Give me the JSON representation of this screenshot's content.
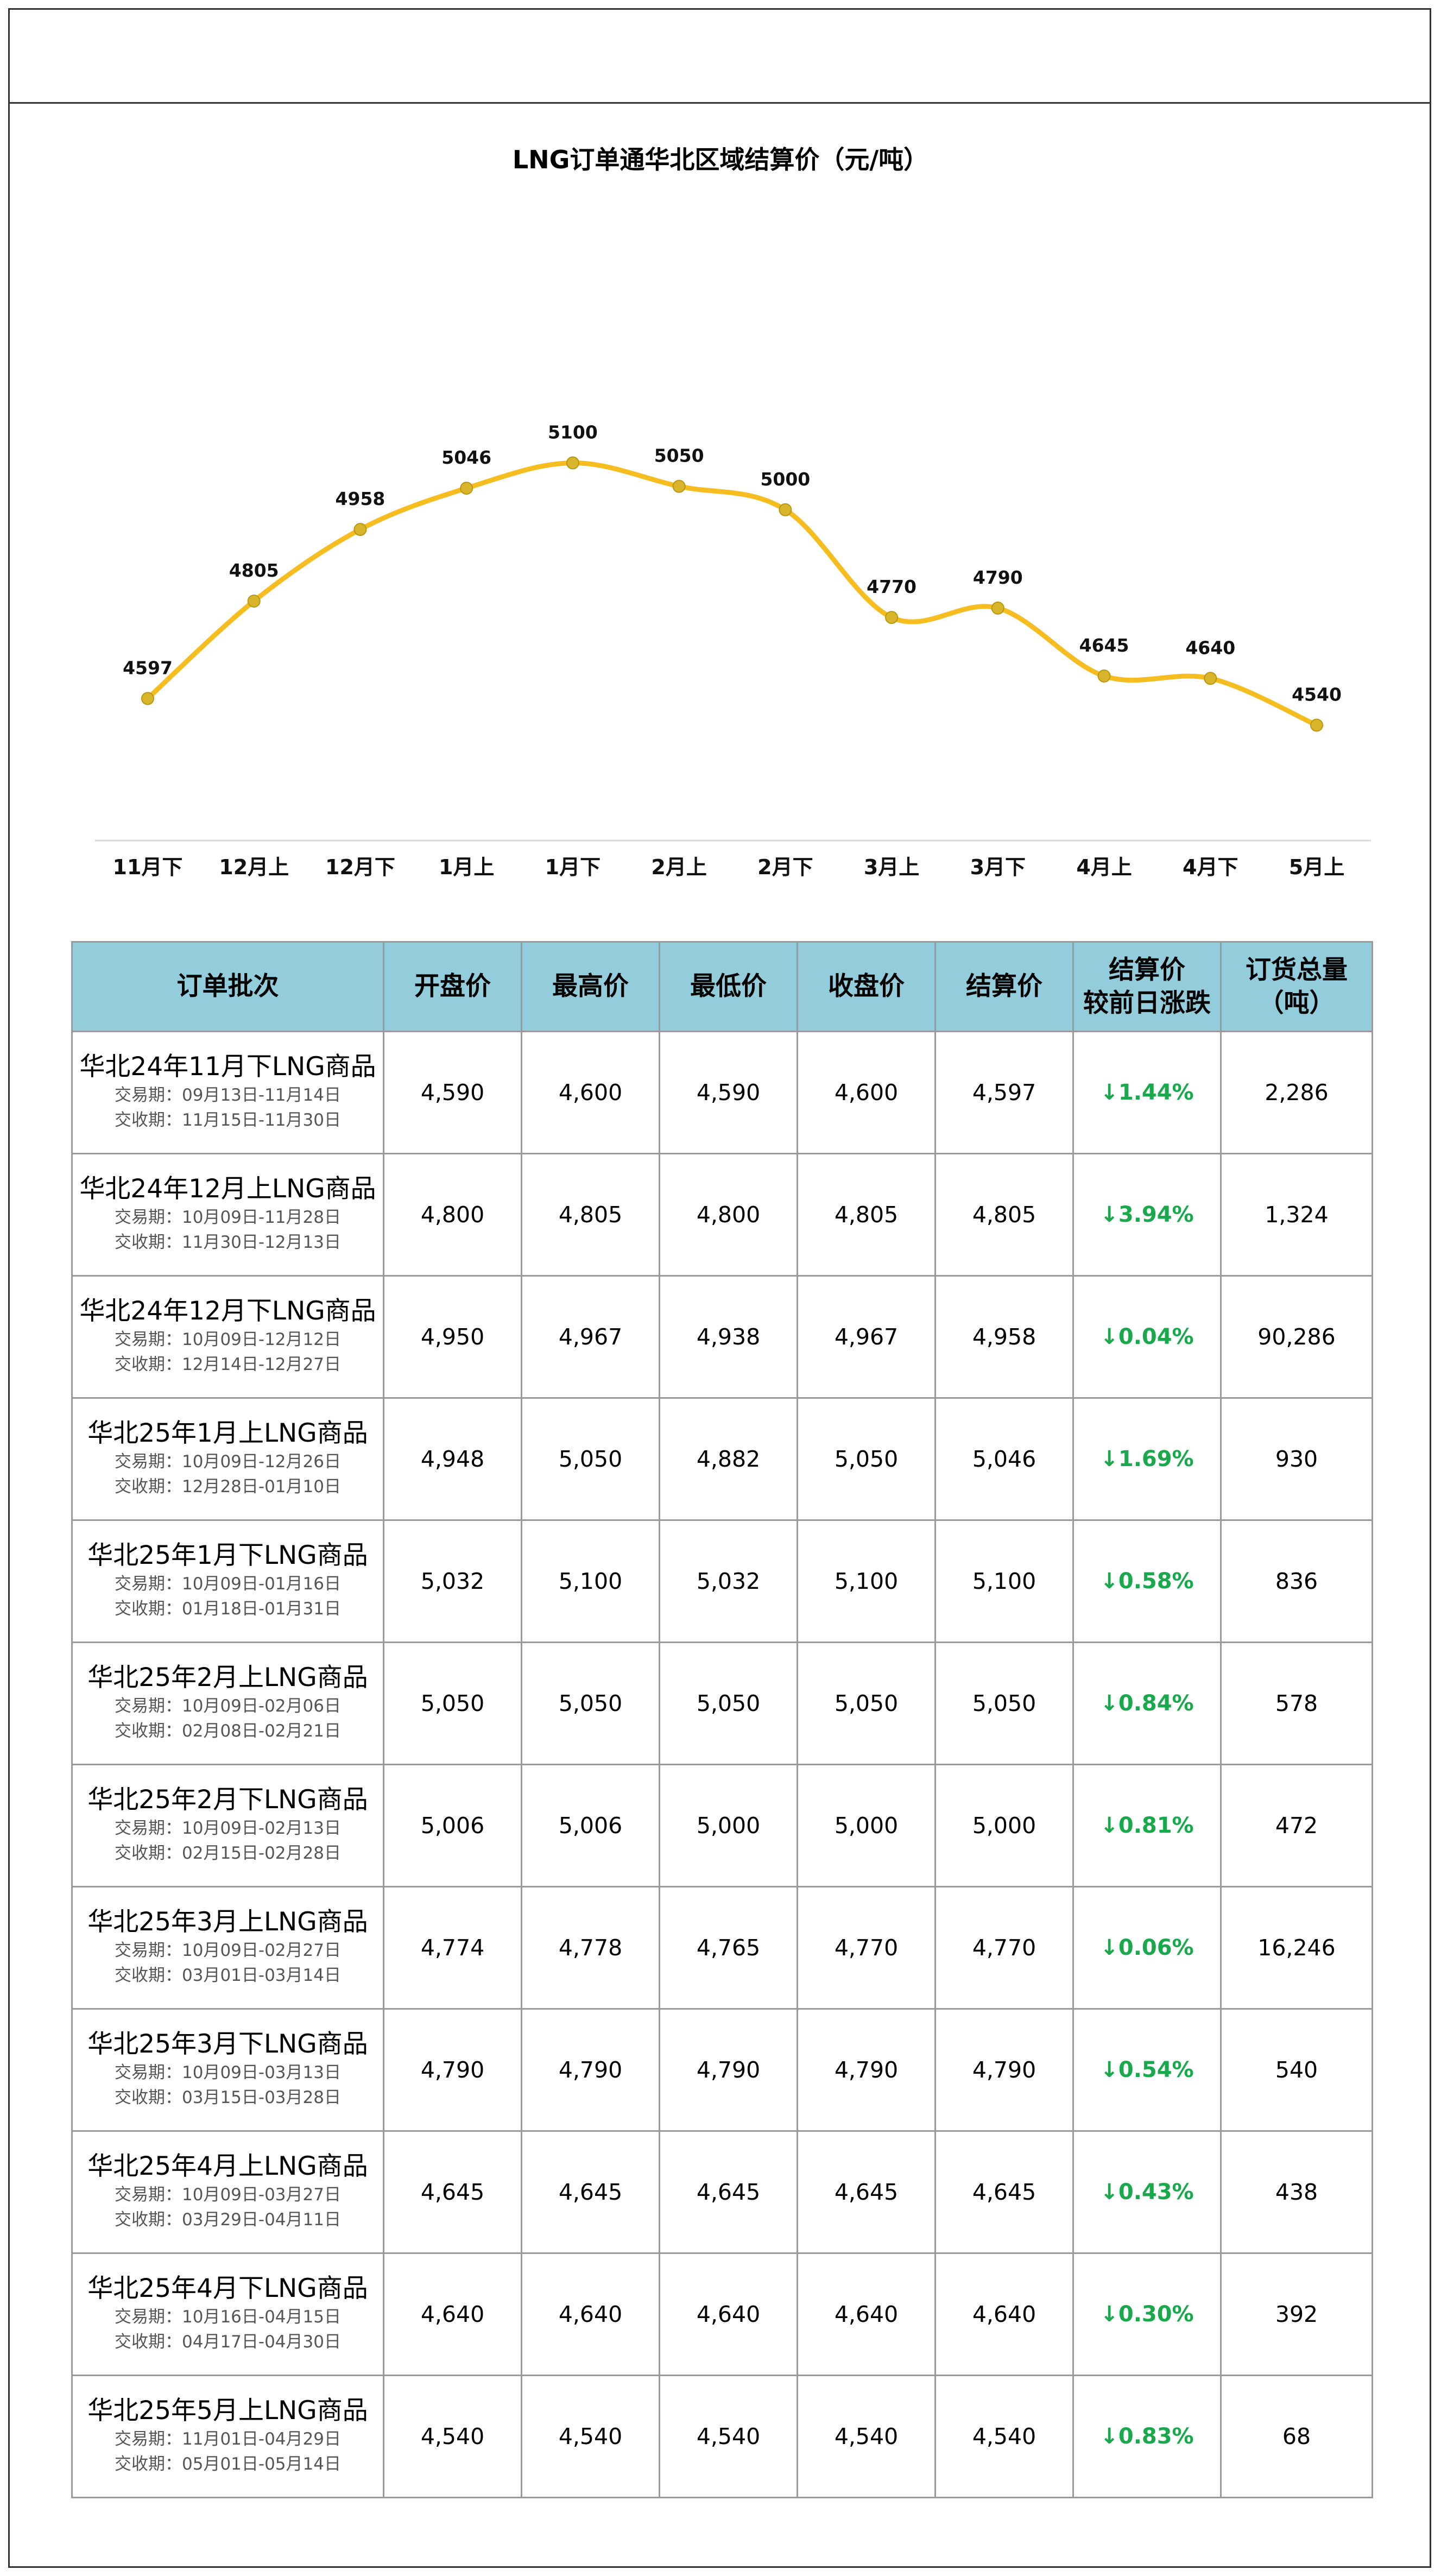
{
  "chart_data": {
    "type": "line",
    "title": "LNG订单通华北区域结算价（元/吨）",
    "categories": [
      "11月下",
      "12月上",
      "12月下",
      "1月上",
      "1月下",
      "2月上",
      "2月下",
      "3月上",
      "3月下",
      "4月上",
      "4月下",
      "5月上"
    ],
    "series": [
      {
        "values": [
          4597,
          4805,
          4958,
          5046,
          5100,
          5050,
          5000,
          4770,
          4790,
          4645,
          4640,
          4540
        ]
      }
    ],
    "line_color": "#f5bd1f",
    "marker_color": "#d8b52a",
    "grid": false,
    "ylim": [
      4100,
      5700
    ]
  },
  "table": {
    "headers": [
      "订单批次",
      "开盘价",
      "最高价",
      "最低价",
      "收盘价",
      "结算价",
      "结算价\n较前日涨跌",
      "订货总量\n（吨）"
    ],
    "header_color": "#93cddb",
    "change_color": "#19a84b",
    "rows": [
      {
        "name": "华北24年11月下LNG商品",
        "trade": "交易期：09月13日-11月14日",
        "delivery": "交收期：11月15日-11月30日",
        "open": "4,590",
        "high": "4,600",
        "low": "4,590",
        "close": "4,600",
        "settle": "4,597",
        "change": "↓1.44%",
        "volume": "2,286"
      },
      {
        "name": "华北24年12月上LNG商品",
        "trade": "交易期：10月09日-11月28日",
        "delivery": "交收期：11月30日-12月13日",
        "open": "4,800",
        "high": "4,805",
        "low": "4,800",
        "close": "4,805",
        "settle": "4,805",
        "change": "↓3.94%",
        "volume": "1,324"
      },
      {
        "name": "华北24年12月下LNG商品",
        "trade": "交易期：10月09日-12月12日",
        "delivery": "交收期：12月14日-12月27日",
        "open": "4,950",
        "high": "4,967",
        "low": "4,938",
        "close": "4,967",
        "settle": "4,958",
        "change": "↓0.04%",
        "volume": "90,286"
      },
      {
        "name": "华北25年1月上LNG商品",
        "trade": "交易期：10月09日-12月26日",
        "delivery": "交收期：12月28日-01月10日",
        "open": "4,948",
        "high": "5,050",
        "low": "4,882",
        "close": "5,050",
        "settle": "5,046",
        "change": "↓1.69%",
        "volume": "930"
      },
      {
        "name": "华北25年1月下LNG商品",
        "trade": "交易期：10月09日-01月16日",
        "delivery": "交收期：01月18日-01月31日",
        "open": "5,032",
        "high": "5,100",
        "low": "5,032",
        "close": "5,100",
        "settle": "5,100",
        "change": "↓0.58%",
        "volume": "836"
      },
      {
        "name": "华北25年2月上LNG商品",
        "trade": "交易期：10月09日-02月06日",
        "delivery": "交收期：02月08日-02月21日",
        "open": "5,050",
        "high": "5,050",
        "low": "5,050",
        "close": "5,050",
        "settle": "5,050",
        "change": "↓0.84%",
        "volume": "578"
      },
      {
        "name": "华北25年2月下LNG商品",
        "trade": "交易期：10月09日-02月13日",
        "delivery": "交收期：02月15日-02月28日",
        "open": "5,006",
        "high": "5,006",
        "low": "5,000",
        "close": "5,000",
        "settle": "5,000",
        "change": "↓0.81%",
        "volume": "472"
      },
      {
        "name": "华北25年3月上LNG商品",
        "trade": "交易期：10月09日-02月27日",
        "delivery": "交收期：03月01日-03月14日",
        "open": "4,774",
        "high": "4,778",
        "low": "4,765",
        "close": "4,770",
        "settle": "4,770",
        "change": "↓0.06%",
        "volume": "16,246"
      },
      {
        "name": "华北25年3月下LNG商品",
        "trade": "交易期：10月09日-03月13日",
        "delivery": "交收期：03月15日-03月28日",
        "open": "4,790",
        "high": "4,790",
        "low": "4,790",
        "close": "4,790",
        "settle": "4,790",
        "change": "↓0.54%",
        "volume": "540"
      },
      {
        "name": "华北25年4月上LNG商品",
        "trade": "交易期：10月09日-03月27日",
        "delivery": "交收期：03月29日-04月11日",
        "open": "4,645",
        "high": "4,645",
        "low": "4,645",
        "close": "4,645",
        "settle": "4,645",
        "change": "↓0.43%",
        "volume": "438"
      },
      {
        "name": "华北25年4月下LNG商品",
        "trade": "交易期：10月16日-04月15日",
        "delivery": "交收期：04月17日-04月30日",
        "open": "4,640",
        "high": "4,640",
        "low": "4,640",
        "close": "4,640",
        "settle": "4,640",
        "change": "↓0.30%",
        "volume": "392"
      },
      {
        "name": "华北25年5月上LNG商品",
        "trade": "交易期：11月01日-04月29日",
        "delivery": "交收期：05月01日-05月14日",
        "open": "4,540",
        "high": "4,540",
        "low": "4,540",
        "close": "4,540",
        "settle": "4,540",
        "change": "↓0.83%",
        "volume": "68"
      }
    ]
  }
}
